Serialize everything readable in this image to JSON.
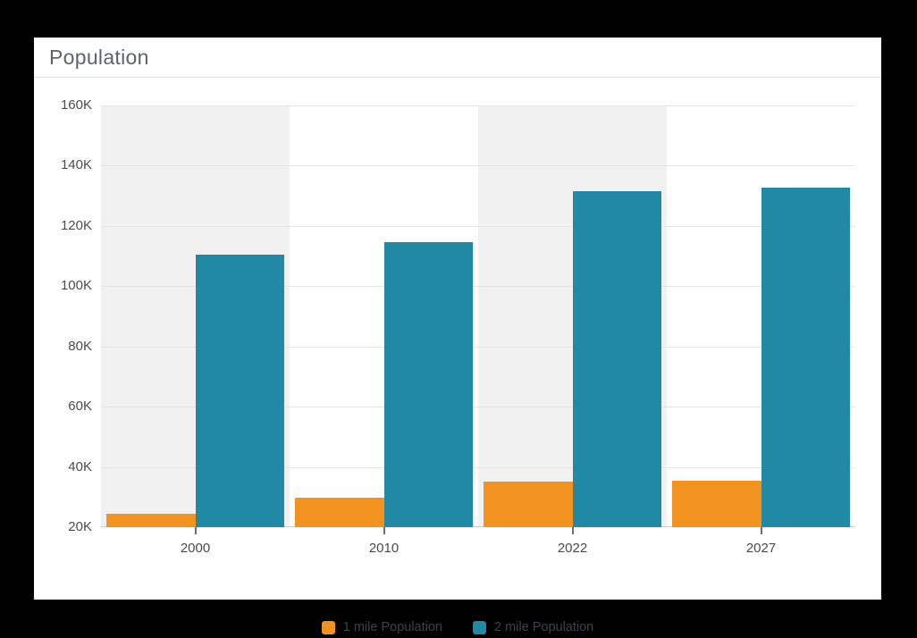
{
  "header": {
    "title": "Population"
  },
  "chart_data": {
    "type": "bar",
    "title": "Population",
    "categories": [
      "2000",
      "2010",
      "2022",
      "2027"
    ],
    "series": [
      {
        "name": "1 mile Population",
        "color": "#f2931f",
        "values": [
          24400,
          29800,
          35000,
          35400
        ]
      },
      {
        "name": "2 mile Population",
        "color": "#2289a4",
        "values": [
          110500,
          114700,
          131600,
          132600
        ]
      }
    ],
    "xlabel": "",
    "ylabel": "",
    "ylim": [
      20000,
      160000
    ],
    "y_tick_values": [
      160000,
      140000,
      120000,
      100000,
      80000,
      60000,
      40000,
      20000
    ],
    "y_tick_labels": [
      "160K",
      "140K",
      "120K",
      "100K",
      "80K",
      "60K",
      "40K",
      "20K"
    ],
    "grid": "horizontal",
    "legend_position": "bottom",
    "shaded_category_columns": [
      "2000",
      "2022"
    ],
    "column_band_color": "#f1f1f1",
    "gridline_color": "#e4e4e4"
  }
}
